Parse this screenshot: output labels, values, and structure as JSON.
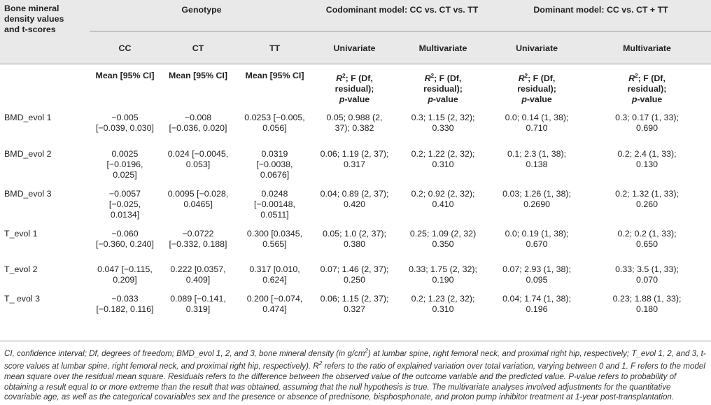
{
  "header": {
    "row_label": [
      "Bone mineral",
      "density values",
      "and t-scores"
    ],
    "genotype": "Genotype",
    "codominant": "Codominant model: CC vs. CT vs. TT",
    "dominant": "Dominant model: CC vs. CT + TT",
    "cc": "CC",
    "ct": "CT",
    "tt": "TT",
    "univariate": "Univariate",
    "multivariate": "Multivariate",
    "mean_ci": "Mean [95% CI]",
    "stat_r": "R",
    "stat_sup": "2",
    "stat_rest": "; F (Df,",
    "stat_line2": "residual);",
    "stat_p": "p",
    "stat_value": "-value"
  },
  "rows": [
    {
      "label": "BMD_evol 1",
      "cc": [
        "−0.005",
        "[−0.039, 0.030]"
      ],
      "ct": [
        "−0.008",
        "[−0.036, 0.020]"
      ],
      "tt": [
        "0.0253 [−0.005,",
        "0.056]"
      ],
      "cu": [
        "0.05; 0.988 (2,",
        "37); 0.382"
      ],
      "cm": [
        "0.3; 1.15 (2, 32);",
        "0.330"
      ],
      "du": [
        "0.0; 0.14 (1, 38);",
        "0.710"
      ],
      "dm": [
        "0.3; 0.17 (1, 33);",
        "0.690"
      ]
    },
    {
      "label": "BMD_evol 2",
      "cc": [
        "0.0025",
        "[−0.0196,",
        "0.025]"
      ],
      "ct": [
        "0.024 [−0.0045,",
        "0.053]"
      ],
      "tt": [
        "0.0319",
        "[−0.0038,",
        "0.0676]"
      ],
      "cu": [
        "0.06; 1.19 (2, 37);",
        "0.317"
      ],
      "cm": [
        "0.2; 1.22 (2, 32);",
        "0.310"
      ],
      "du": [
        "0.1; 2.3 (1, 38);",
        "0.138"
      ],
      "dm": [
        "0.2; 2.4 (1, 33);",
        "0.130"
      ]
    },
    {
      "label": "BMD_evol 3",
      "cc": [
        "−0.0057",
        "[−0.025,",
        "0.0134]"
      ],
      "ct": [
        "0.0095 [−0.028,",
        "0.0465]"
      ],
      "tt": [
        "0.0248",
        "[−0.00148,",
        "0.0511]"
      ],
      "cu": [
        "0.04; 0.89 (2, 37);",
        "0.420"
      ],
      "cm": [
        "0.2; 0.92 (2, 32);",
        "0.410"
      ],
      "du": [
        "0.03; 1.26 (1, 38);",
        "0.2690"
      ],
      "dm": [
        "0.2; 1.32 (1, 33);",
        "0.260"
      ]
    },
    {
      "label": "T_evol 1",
      "cc": [
        "−0.060",
        "[−0.360, 0.240]"
      ],
      "ct": [
        "−0.0722",
        "[−0.332, 0.188]"
      ],
      "tt": [
        "0.300 [0.0345,",
        "0.565]"
      ],
      "cu": [
        "0.05; 1.0 (2, 37);",
        "0.380"
      ],
      "cm": [
        "0.25; 1.09 (2, 32)",
        "0.350"
      ],
      "du": [
        "0.0; 0.19 (1, 38);",
        "0.670"
      ],
      "dm": [
        "0.2; 0.2 (1, 33);",
        "0.650"
      ]
    },
    {
      "label": "T_evol 2",
      "cc": [
        "0.047 [−0.115,",
        "0.209]"
      ],
      "ct": [
        "0.222 [0.0357,",
        "0.409]"
      ],
      "tt": [
        "0.317 [0.010,",
        "0.624]"
      ],
      "cu": [
        "0.07; 1.46 (2, 37);",
        "0.250"
      ],
      "cm": [
        "0.33; 1.75 (2, 32);",
        "0.190"
      ],
      "du": [
        "0.07; 2.93 (1, 38);",
        "0.095"
      ],
      "dm": [
        "0.33; 3.5 (1, 33);",
        "0.070"
      ]
    },
    {
      "label": "T_ evol 3",
      "cc": [
        "−0.033",
        "[−0.182, 0.116]"
      ],
      "ct": [
        "0.089 [−0.141,",
        "0.319]"
      ],
      "tt": [
        "0.200 [−0.074,",
        "0.474]"
      ],
      "cu": [
        "0.06; 1.15 (2, 37);",
        "0.327"
      ],
      "cm": [
        "0.2; 1.23 (2, 32);",
        "0.310"
      ],
      "du": [
        "0.04; 1.74 (1, 38);",
        "0.196"
      ],
      "dm": [
        "0.23; 1.88 (1, 33);",
        "0.180"
      ]
    }
  ],
  "caption": [
    "CI, confidence interval; Df, degrees of freedom; BMD_evol 1, 2, and 3, bone mineral density (in g/cm",
    "2",
    ") at lumbar spine, right femoral neck, and proximal right hip, respectively; T_evol 1, 2, and 3, t-score values at lumbar spine, right femoral neck, and proximal right hip, respectively). R",
    "2",
    " refers to the ratio of explained variation over total variation, varying between 0 and 1. F refers to the model mean square over the residual mean square. Residuals refers to the difference between the observed value of the outcome variable and the predicted value. P-value refers to probability of obtaining a result equal to or more extreme than the result that was obtained, assuming that the null hypothesis is true. The multivariate analyses involved adjustments for the quantitative covariable age, as well as the categorical covariables sex and the presence or absence of prednisone, bisphosphonate, and proton pump inhibitor treatment at 1-year post-transplantation."
  ]
}
